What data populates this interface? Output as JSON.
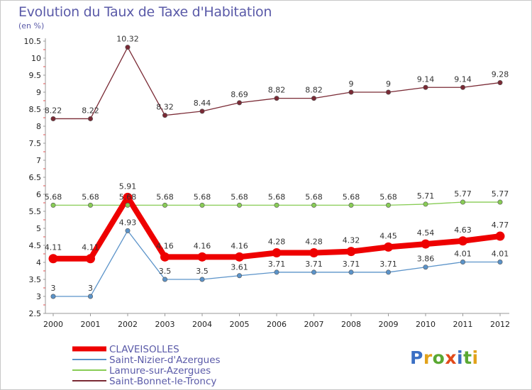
{
  "chart_data": {
    "type": "line",
    "title": "Evolution du Taux de Taxe d'Habitation",
    "subtitle": "(en %)",
    "x": [
      "2000",
      "2001",
      "2002",
      "2003",
      "2004",
      "2005",
      "2006",
      "2007",
      "2008",
      "2009",
      "2010",
      "2011",
      "2012"
    ],
    "ylim": [
      2.5,
      10.5
    ],
    "yticks": [
      "2.5",
      "3",
      "3.5",
      "4",
      "4.5",
      "5",
      "5.5",
      "6",
      "6.5",
      "7",
      "7.5",
      "8",
      "8.5",
      "9",
      "9.5",
      "10",
      "10.5"
    ],
    "grid": false,
    "legend_position": "bottom-left",
    "series": [
      {
        "name": "CLAVEISOLLES",
        "color": "#ee0000",
        "values": [
          4.11,
          4.11,
          5.91,
          4.16,
          4.16,
          4.16,
          4.28,
          4.28,
          4.32,
          4.45,
          4.54,
          4.63,
          4.77
        ],
        "labels": [
          "4.11",
          "4.11",
          "5.91",
          "4.16",
          "4.16",
          "4.16",
          "4.28",
          "4.28",
          "4.32",
          "4.45",
          "4.54",
          "4.63",
          "4.77"
        ]
      },
      {
        "name": "Saint-Nizier-d'Azergues",
        "color": "#5b93c9",
        "values": [
          3,
          3,
          4.93,
          3.5,
          3.5,
          3.61,
          3.71,
          3.71,
          3.71,
          3.71,
          3.86,
          4.01,
          4.01
        ],
        "labels": [
          "3",
          "3",
          "4.93",
          "3.5",
          "3.5",
          "3.61",
          "3.71",
          "3.71",
          "3.71",
          "3.71",
          "3.86",
          "4.01",
          "4.01"
        ]
      },
      {
        "name": "Lamure-sur-Azergues",
        "color": "#88cc55",
        "values": [
          5.68,
          5.68,
          5.68,
          5.68,
          5.68,
          5.68,
          5.68,
          5.68,
          5.68,
          5.68,
          5.71,
          5.77,
          5.77
        ],
        "labels": [
          "5.68",
          "5.68",
          "5.68",
          "5.68",
          "5.68",
          "5.68",
          "5.68",
          "5.68",
          "5.68",
          "5.68",
          "5.71",
          "5.77",
          "5.77"
        ]
      },
      {
        "name": "Saint-Bonnet-le-Troncy",
        "color": "#7a2a35",
        "values": [
          8.22,
          8.22,
          10.32,
          8.32,
          8.44,
          8.69,
          8.82,
          8.82,
          9,
          9,
          9.14,
          9.14,
          9.28
        ],
        "labels": [
          "8.22",
          "8.22",
          "10.32",
          "8.32",
          "8.44",
          "8.69",
          "8.82",
          "8.82",
          "9",
          "9",
          "9.14",
          "9.14",
          "9.28"
        ]
      }
    ]
  },
  "logo": {
    "letters": [
      "P",
      "r",
      "o",
      "x",
      "i",
      "t",
      "i"
    ],
    "colors": [
      "#3a6fc4",
      "#e2a21a",
      "#5aa832",
      "#e24a1a",
      "#3a6fc4",
      "#5aa832",
      "#e2a21a"
    ]
  }
}
